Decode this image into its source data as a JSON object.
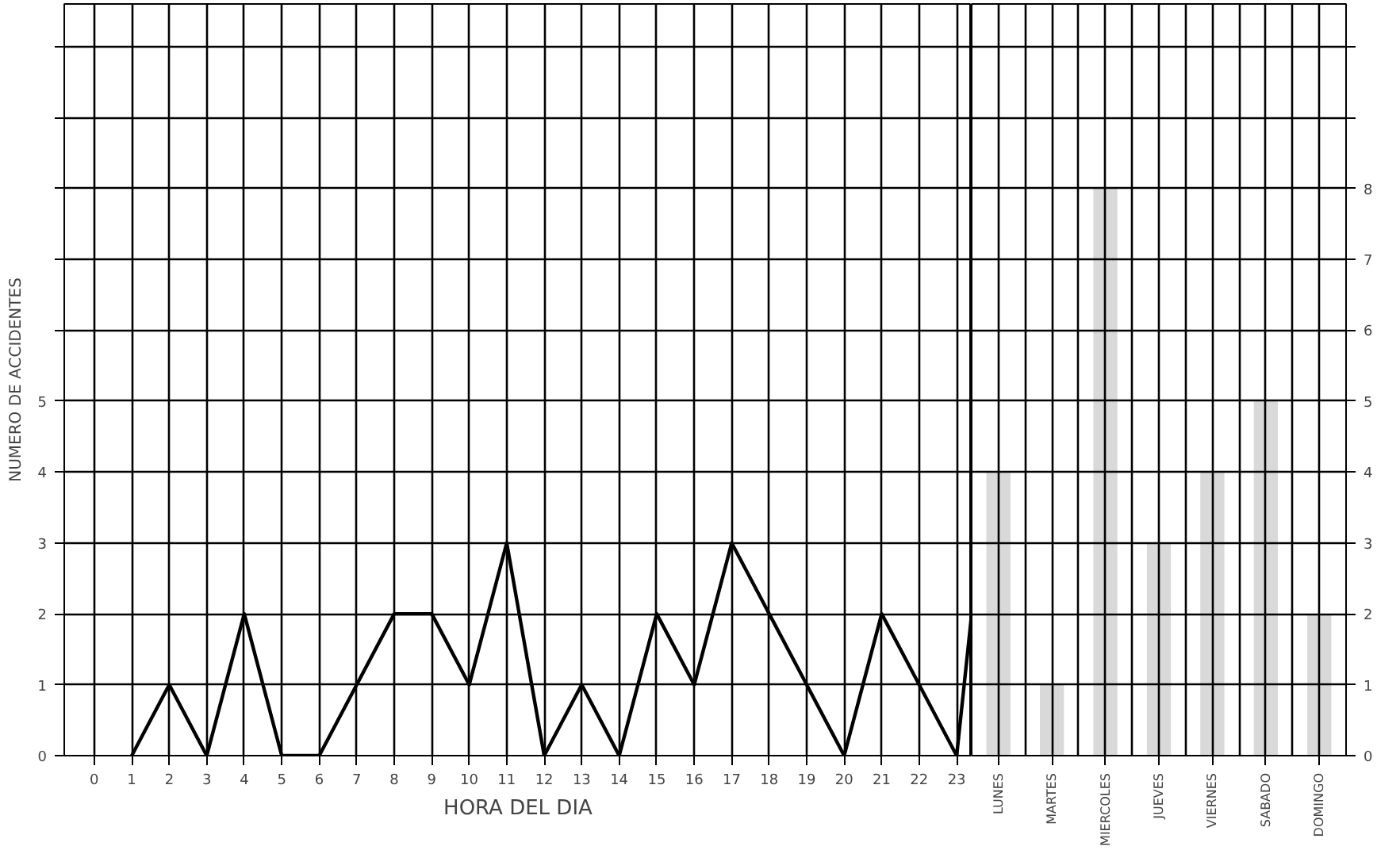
{
  "chart_data": [
    {
      "type": "line",
      "xlabel": "HORA DEL DIA",
      "ylabel": "NUMERO DE ACCIDENTES",
      "color": "#000000",
      "x": [
        1,
        2,
        3,
        4,
        5,
        6,
        7,
        8,
        9,
        10,
        11,
        12,
        13,
        14,
        15,
        16,
        17,
        18,
        19,
        20,
        21,
        22,
        23,
        23.4
      ],
      "values": [
        0,
        1,
        0,
        2,
        0,
        0,
        1,
        2,
        2,
        1,
        3,
        0,
        1,
        0,
        2,
        1,
        3,
        2,
        1,
        0,
        2,
        1,
        0,
        2
      ],
      "xlim": [
        -0.8,
        23.4
      ],
      "xticks": [
        0,
        1,
        2,
        3,
        4,
        5,
        6,
        7,
        8,
        9,
        10,
        11,
        12,
        13,
        14,
        15,
        16,
        17,
        18,
        19,
        20,
        21,
        22,
        23
      ],
      "ylim": [
        0,
        10.6
      ],
      "yticks": [
        0,
        1,
        2,
        3,
        4,
        5,
        {
          "value": 6,
          "label": null
        },
        {
          "value": 7,
          "label": null
        },
        {
          "value": 8,
          "label": null
        },
        {
          "value": 9,
          "label": null
        },
        {
          "value": 10,
          "label": null
        }
      ],
      "grid": true,
      "marker": "none",
      "line_style": "solid"
    },
    {
      "type": "bar",
      "categories": [
        "LUNES",
        "MARTES",
        "MIERCOLES",
        "JUEVES",
        "VIERNES",
        "SABADO",
        "DOMINGO"
      ],
      "values": [
        4,
        1,
        8,
        3,
        4,
        5,
        2
      ],
      "color": "#d9d9d9",
      "ylim": [
        0,
        10.6
      ],
      "yticks": [
        0,
        1,
        2,
        3,
        4,
        5,
        6,
        7,
        8,
        {
          "value": 9,
          "label": null
        },
        {
          "value": 10,
          "label": null
        }
      ],
      "grid": true
    }
  ]
}
